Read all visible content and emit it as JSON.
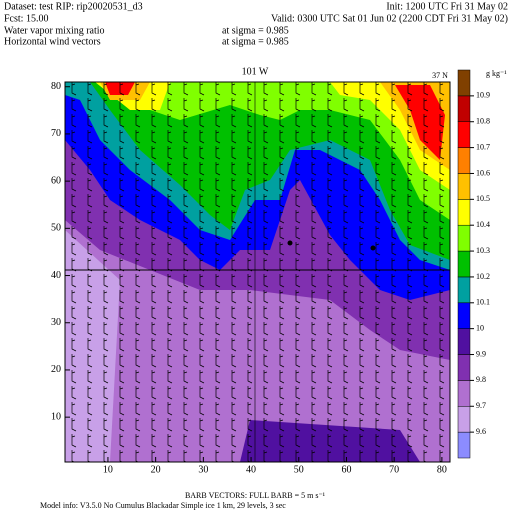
{
  "header": {
    "dataset": "Dataset: test  RIP: rip20020531_d3",
    "init": "Init: 1200 UTC Fri 31 May 02",
    "fcst": "Fcst:    15.00",
    "valid": "Valid: 0300 UTC Sat 01 Jun 02 (2200 CDT Fri 31 May 02)",
    "field1": "Water vapor mixing ratio",
    "field1_level": "at sigma = 0.985",
    "field2": "Horizontal wind vectors",
    "field2_level": "at sigma = 0.985"
  },
  "chart_data": {
    "type": "contour",
    "title": "101 W",
    "corner_label": "37 N",
    "unit": "g kg⁻¹",
    "xlim": [
      1,
      81.7
    ],
    "ylim": [
      0.5,
      81
    ],
    "xticks": [
      10,
      20,
      30,
      40,
      50,
      60,
      70,
      80
    ],
    "yticks": [
      10,
      20,
      30,
      40,
      50,
      60,
      70,
      80
    ],
    "levels": [
      9.6,
      9.7,
      9.8,
      9.9,
      10,
      10.1,
      10.2,
      10.3,
      10.4,
      10.5,
      10.6,
      10.7,
      10.8,
      10.9
    ],
    "colors": [
      "#8c8cff",
      "#c8a0e8",
      "#b070d0",
      "#8030b0",
      "#5010a0",
      "#0000ff",
      "#00a0a0",
      "#00c000",
      "#80ff00",
      "#ffff00",
      "#ffc000",
      "#ff8000",
      "#ff0000",
      "#c00000",
      "#804000"
    ]
  },
  "footer": {
    "barb": "BARB VECTORS:  FULL BARB = 5 m s⁻¹",
    "model": "Model info: V3.5.0  No Cumulus  Blackadar  Simple ice    1 km,   29 levels,     3 sec"
  }
}
